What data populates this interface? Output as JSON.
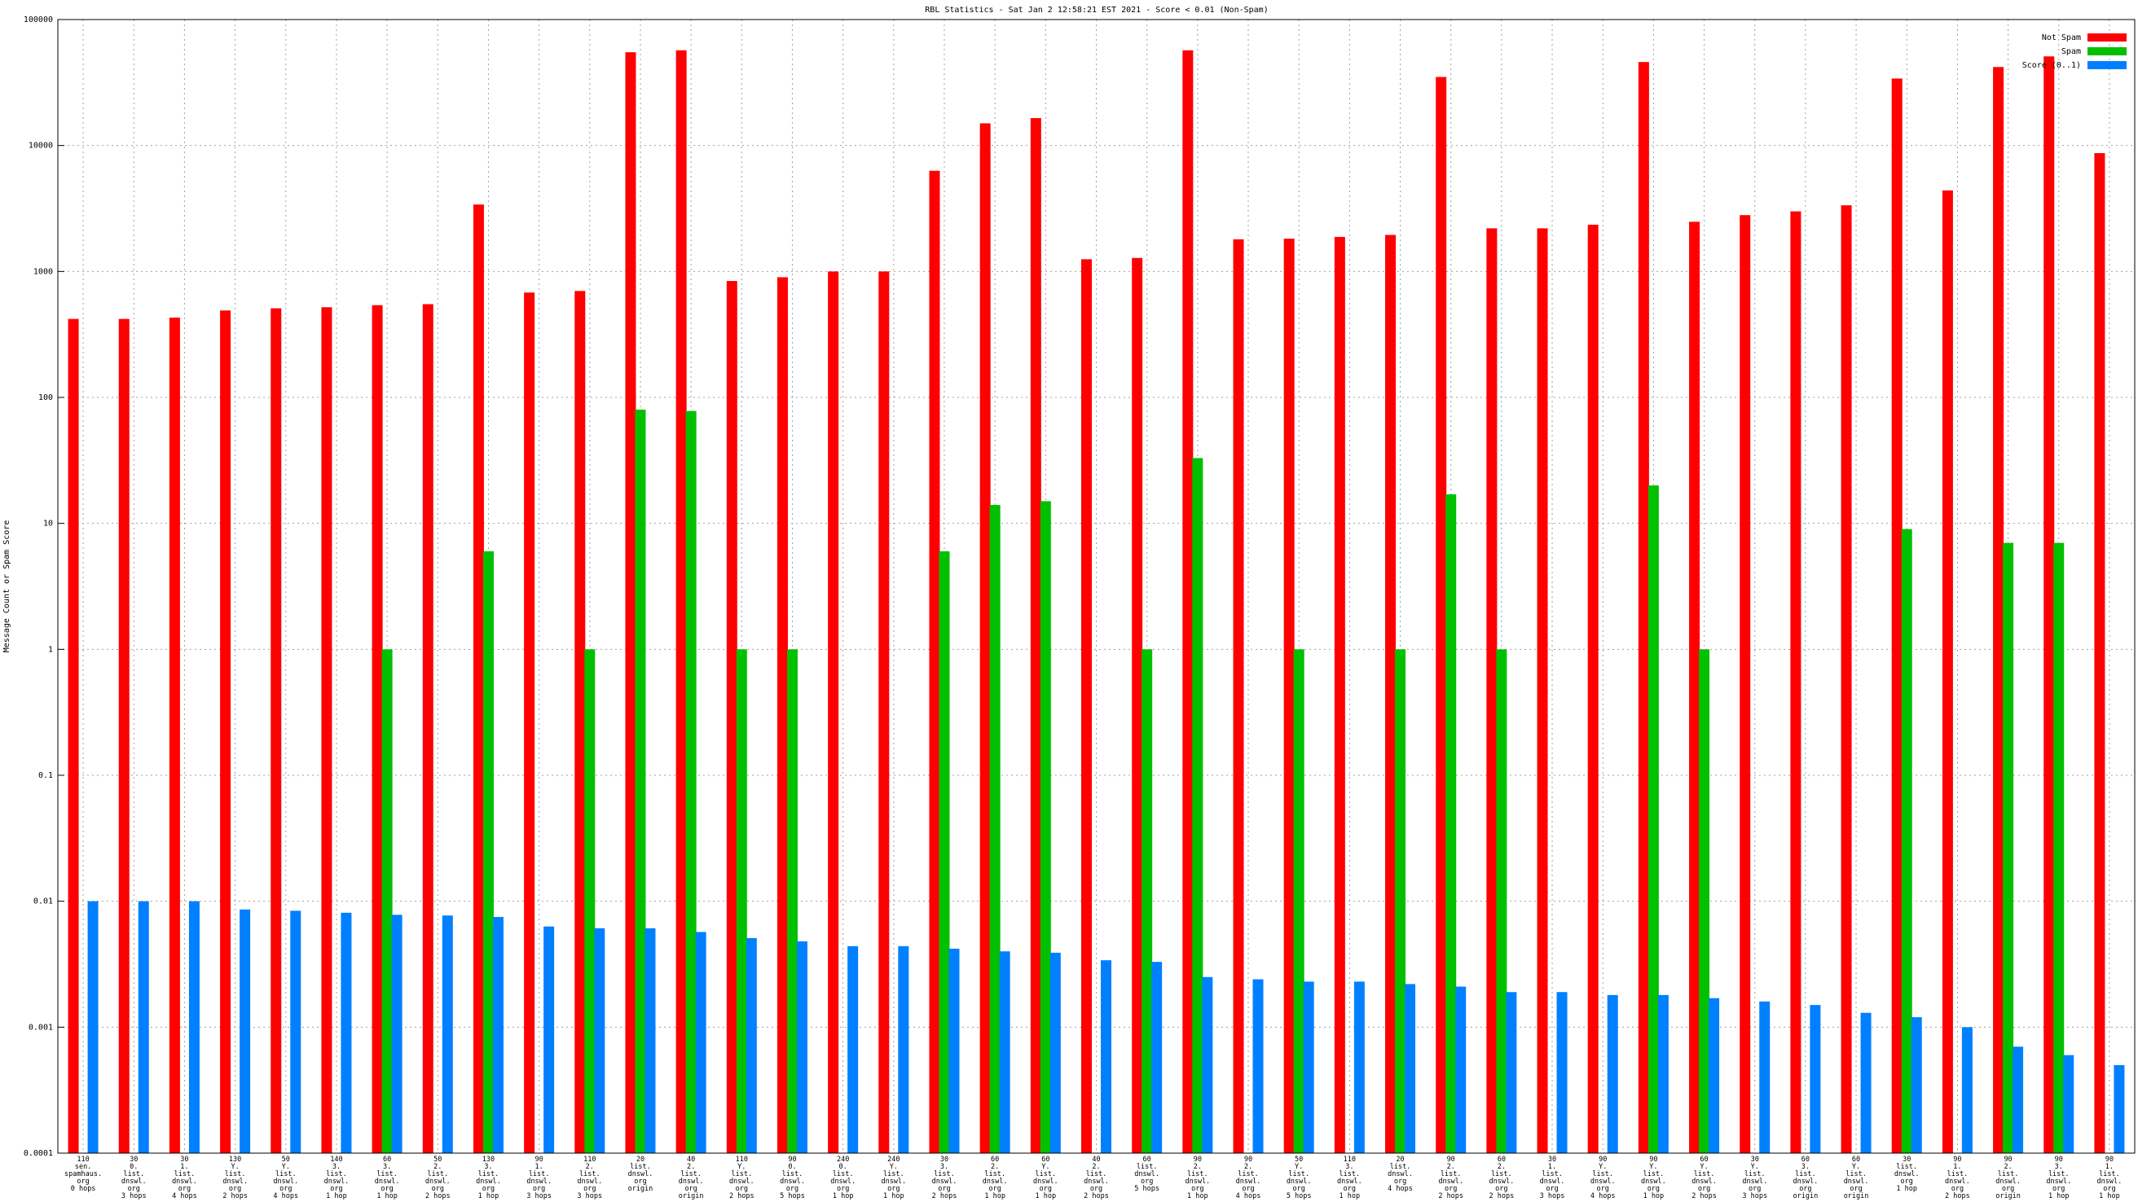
{
  "chart_data": {
    "type": "bar",
    "title": "RBL Statistics - Sat Jan  2 12:58:21 EST 2021 - Score < 0.01 (Non-Spam)",
    "y_label": "Message Count or Spam Score",
    "log": true,
    "grid": true,
    "legend": "top right",
    "ylim": [
      0.0001,
      100000
    ],
    "yticks": [
      0.0001,
      0.001,
      0.01,
      0.1,
      1,
      10,
      100,
      1000,
      10000,
      100000
    ],
    "categories": [
      "110\nsen.\nspamhaus.\norg\n0 hops",
      "30\n0.\nlist.\ndnswl.\norg\n3 hops",
      "30\n1.\nlist.\ndnswl.\norg\n4 hops",
      "130\nY.\nlist.\ndnswl.\norg\n2 hops",
      "50\nY.\nlist.\ndnswl.\norg\n4 hops",
      "140\n3.\nlist.\ndnswl.\norg\n1 hop",
      "60\n3.\nlist.\ndnswl.\norg\n1 hop",
      "50\n2.\nlist.\ndnswl.\norg\n2 hops",
      "130\n3.\nlist.\ndnswl.\norg\n1 hop",
      "90\n1.\nlist.\ndnswl.\norg\n3 hops",
      "110\n2.\nlist.\ndnswl.\norg\n3 hops",
      "20\nlist.\ndnswl.\norg\norigin",
      "40\n2.\nlist.\ndnswl.\norg\norigin",
      "110\nY.\nlist.\ndnswl.\norg\n2 hops",
      "90\n0.\nlist.\ndnswl.\norg\n5 hops",
      "240\n0.\nlist.\ndnswl.\norg\n1 hop",
      "240\nY.\nlist.\ndnswl.\norg\n1 hop",
      "30\n3.\nlist.\ndnswl.\norg\n2 hops",
      "60\n2.\nlist.\ndnswl.\norg\n1 hop",
      "60\nY.\nlist.\ndnswl.\norg\n1 hop",
      "40\n2.\nlist.\ndnswl.\norg\n2 hops",
      "60\nlist.\ndnswl.\norg\n5 hops",
      "90\n2.\nlist.\ndnswl.\norg\n1 hop",
      "90\n2.\nlist.\ndnswl.\norg\n4 hops",
      "50\nY.\nlist.\ndnswl.\norg\n5 hops",
      "110\n3.\nlist.\ndnswl.\norg\n1 hop",
      "20\nlist.\ndnswl.\norg\n4 hops",
      "90\n2.\nlist.\ndnswl.\norg\n2 hops",
      "60\n2.\nlist.\ndnswl.\norg\n2 hops",
      "30\n1.\nlist.\ndnswl.\norg\n3 hops",
      "90\nY.\nlist.\ndnswl.\norg\n4 hops",
      "90\nY.\nlist.\ndnswl.\norg\n1 hop",
      "60\nY.\nlist.\ndnswl.\norg\n2 hops",
      "30\nY.\nlist.\ndnswl.\norg\n3 hops",
      "60\n3.\nlist.\ndnswl.\norg\norigin",
      "60\nY.\nlist.\ndnswl.\norg\norigin",
      "30\nlist.\ndnswl.\norg\n1 hop",
      "90\n1.\nlist.\ndnswl.\norg\n2 hops",
      "90\n2.\nlist.\ndnswl.\norg\norigin",
      "90\n3.\nlist.\ndnswl.\norg\n1 hop",
      "90\n1.\nlist.\ndnswl.\norg\n1 hop"
    ],
    "series": [
      {
        "name": "Not Spam",
        "color": "#ff0000",
        "values": [
          420,
          420,
          430,
          490,
          510,
          520,
          540,
          550,
          3400,
          680,
          700,
          55000,
          57000,
          840,
          900,
          1000,
          1000,
          6300,
          15000,
          16500,
          1250,
          1280,
          57000,
          1800,
          1820,
          1880,
          1950,
          35000,
          2200,
          2200,
          2350,
          46000,
          2480,
          2800,
          3000,
          3350,
          34000,
          4400,
          42000,
          51000,
          8700
        ]
      },
      {
        "name": "Spam",
        "color": "#00c000",
        "values": [
          null,
          null,
          null,
          null,
          null,
          null,
          1,
          null,
          6,
          null,
          1,
          80,
          78,
          1,
          1,
          null,
          null,
          6,
          14,
          15,
          null,
          1,
          33,
          null,
          1,
          null,
          1,
          17,
          1,
          null,
          null,
          20,
          1,
          null,
          null,
          null,
          9,
          null,
          7,
          7,
          null
        ]
      },
      {
        "name": "Score (0..1)",
        "color": "#0080ff",
        "values": [
          0.01,
          0.01,
          0.01,
          0.0086,
          0.0084,
          0.0081,
          0.0078,
          0.0077,
          0.0075,
          0.0063,
          0.0061,
          0.0061,
          0.0057,
          0.0051,
          0.0048,
          0.0044,
          0.0044,
          0.0042,
          0.004,
          0.0039,
          0.0034,
          0.0033,
          0.0025,
          0.0024,
          0.0023,
          0.0023,
          0.0022,
          0.0021,
          0.0019,
          0.0019,
          0.0018,
          0.0018,
          0.0017,
          0.0016,
          0.0015,
          0.0013,
          0.0012,
          0.001,
          0.0007,
          0.0006,
          0.0005
        ]
      }
    ]
  }
}
